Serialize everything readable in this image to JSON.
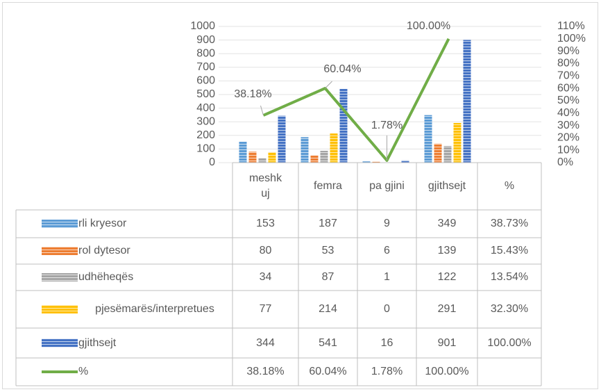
{
  "chart_data": {
    "type": "bar",
    "categories": [
      "meshkuj",
      "femra",
      "pa gjini",
      "gjithsejt",
      "%"
    ],
    "series": [
      {
        "name": "rli kryesor",
        "color": "#5b9bd5",
        "values": [
          153,
          187,
          9,
          349,
          0.3873
        ],
        "value_labels": [
          "153",
          "187",
          "9",
          "349",
          "38.73%"
        ]
      },
      {
        "name": "rol dytesor",
        "color": "#ed7d31",
        "values": [
          80,
          53,
          6,
          139,
          0.1543
        ],
        "value_labels": [
          "80",
          "53",
          "6",
          "139",
          "15.43%"
        ]
      },
      {
        "name": "udhëheqës",
        "color": "#a5a5a5",
        "values": [
          34,
          87,
          1,
          122,
          0.1354
        ],
        "value_labels": [
          "34",
          "87",
          "1",
          "122",
          "13.54%"
        ]
      },
      {
        "name": "pjesëmarës/interpretues",
        "color": "#ffc000",
        "values": [
          77,
          214,
          0,
          291,
          0.323
        ],
        "value_labels": [
          "77",
          "214",
          "0",
          "291",
          "32.30%"
        ]
      },
      {
        "name": "gjithsejt",
        "color": "#4472c4",
        "values": [
          344,
          541,
          16,
          901,
          1.0
        ],
        "value_labels": [
          "344",
          "541",
          "16",
          "901",
          "100.00%"
        ]
      },
      {
        "name": "%",
        "type": "line",
        "axis": "y2",
        "color": "#70ad47",
        "values": [
          38.18,
          60.04,
          1.78,
          100.0,
          null
        ],
        "value_labels": [
          "38.18%",
          "60.04%",
          "1.78%",
          "100.00%",
          null
        ]
      }
    ],
    "ylim": [
      0,
      1000
    ],
    "yticks": [
      0,
      100,
      200,
      300,
      400,
      500,
      600,
      700,
      800,
      900,
      1000
    ],
    "y2lim": [
      0,
      110
    ],
    "y2ticks": [
      {
        "value": 0,
        "label": "0%"
      },
      {
        "value": 10,
        "label": "10%"
      },
      {
        "value": 20,
        "label": "20%"
      },
      {
        "value": 30,
        "label": "30%"
      },
      {
        "value": 40,
        "label": "40%"
      },
      {
        "value": 50,
        "label": "50%"
      },
      {
        "value": 60,
        "label": "60%"
      },
      {
        "value": 70,
        "label": "70%"
      },
      {
        "value": 80,
        "label": "80%"
      },
      {
        "value": 90,
        "label": "90%"
      },
      {
        "value": 100,
        "label": "100%"
      },
      {
        "value": 110,
        "label": "110%"
      }
    ],
    "grid": true,
    "data_table": true
  }
}
